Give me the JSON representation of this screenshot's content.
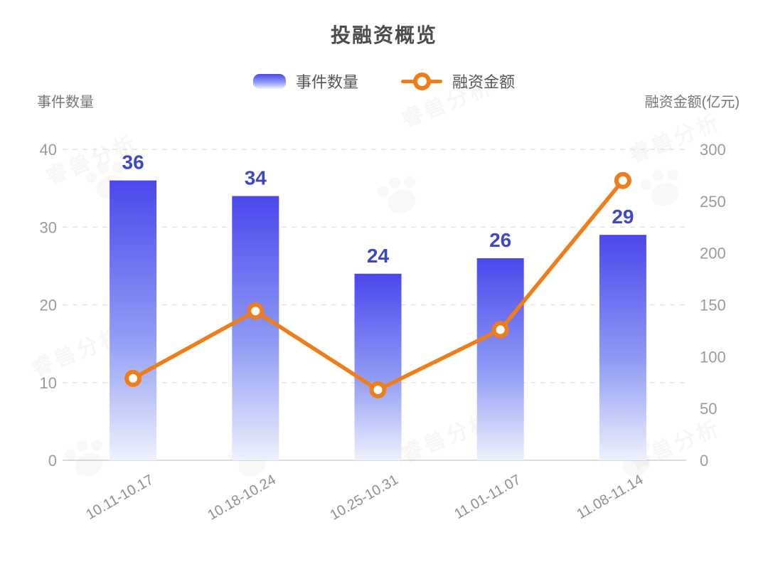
{
  "title": "投融资概览",
  "legend": {
    "bar_label": "事件数量",
    "line_label": "融资金额"
  },
  "watermark": {
    "text": "睿兽分析"
  },
  "colors": {
    "bar_top": "#4b47ec",
    "bar_mid": "#8e9af4",
    "bar_bottom": "#eef1fc",
    "bar_value_label": "#3d49c0",
    "line": "#ef7d1a",
    "marker_fill": "#ffffff",
    "axis_text": "#9b9b9b",
    "x_axis_text": "#8f8f8f",
    "grid_line": "#e4e4e4",
    "axis_line": "#cfcfcf",
    "title_text": "#4c4c4c"
  },
  "chart_data": {
    "type": "bar",
    "title": "投融资概览",
    "categories": [
      "10.11-10.17",
      "10.18-10.24",
      "10.25-10.31",
      "11.01-11.07",
      "11.08-11.14"
    ],
    "series": [
      {
        "name": "事件数量",
        "type": "bar",
        "axis": "left",
        "values": [
          36,
          34,
          24,
          26,
          29
        ]
      },
      {
        "name": "融资金额",
        "type": "line",
        "axis": "right",
        "values": [
          79,
          144,
          68,
          126,
          270
        ]
      }
    ],
    "left_axis": {
      "label": "事件数量",
      "range": [
        0,
        40
      ],
      "ticks": [
        0,
        10,
        20,
        30,
        40
      ]
    },
    "right_axis": {
      "label": "融资金额(亿元)",
      "range": [
        0,
        300
      ],
      "ticks": [
        0,
        50,
        100,
        150,
        200,
        250,
        300
      ]
    },
    "grid": "horizontal dashed",
    "legend_position": "top center",
    "x_label_rotation": -30
  }
}
